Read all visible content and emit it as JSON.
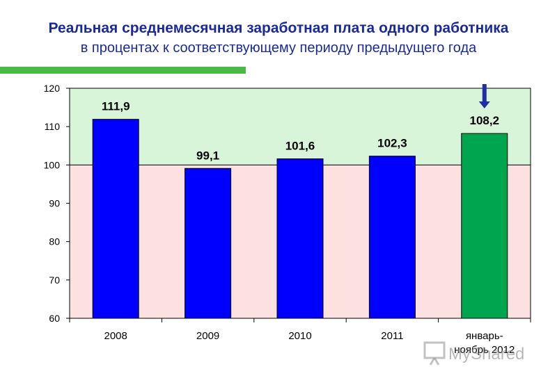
{
  "title": "Реальная среднемесячная заработная плата одного работника",
  "subtitle": "в процентах к соответствующему периоду предыдущего года",
  "watermark": "MyShared",
  "chart_data": {
    "type": "bar",
    "categories": [
      "2008",
      "2009",
      "2010",
      "2011",
      "январь-ноябрь 2012"
    ],
    "category_lines": [
      [
        "2008"
      ],
      [
        "2009"
      ],
      [
        "2010"
      ],
      [
        "2011"
      ],
      [
        "январь-",
        "ноябрь 2012"
      ]
    ],
    "values": [
      111.9,
      99.1,
      101.6,
      102.3,
      108.2
    ],
    "value_labels": [
      "111,9",
      "99,1",
      "101,6",
      "102,3",
      "108,2"
    ],
    "ylim": [
      60,
      120
    ],
    "yticks": [
      60,
      70,
      80,
      90,
      100,
      110,
      120
    ],
    "threshold": 100,
    "bar_colors": [
      "#0000ff",
      "#0000ff",
      "#0000ff",
      "#0000ff",
      "#00a550"
    ],
    "band_above_color": "#d9f5d9",
    "band_below_color": "#fde1e1",
    "arrow_over_category": "январь-ноябрь 2012",
    "arrow_color": "#1f2ea8",
    "grid": false,
    "legend": "none"
  }
}
